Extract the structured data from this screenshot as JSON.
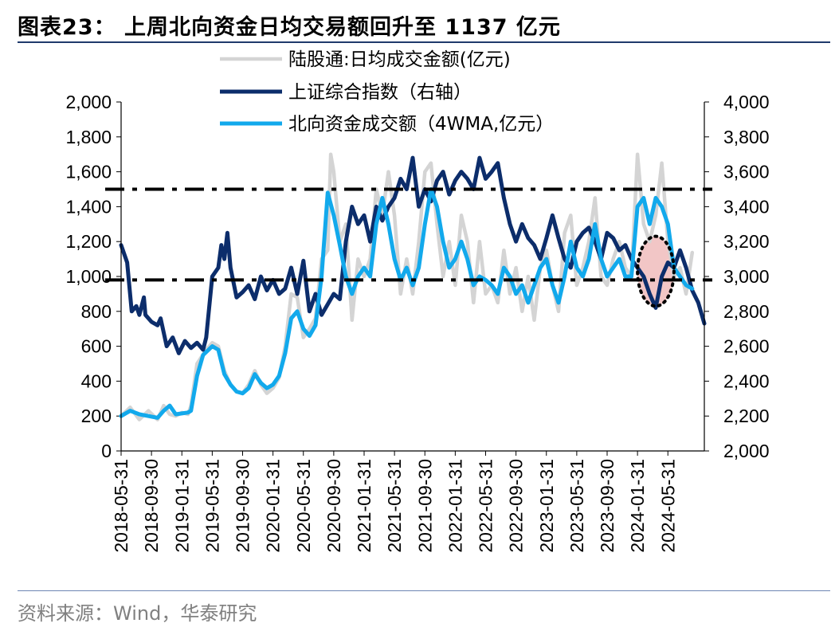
{
  "title": "图表23：  上周北向资金日均交易额回升至 1137 亿元",
  "source": "资料来源：Wind，华泰研究",
  "colors": {
    "daily": "#d4d4d4",
    "index": "#0c2d6b",
    "wma": "#12a9ec",
    "dash": "#000000",
    "circle_fill": "#f2c6c6"
  },
  "chart_data": {
    "type": "line",
    "legend": [
      "陆股通:日均成交金额(亿元)",
      "上证综合指数（右轴）",
      "北向资金成交额（4WMA,亿元）"
    ],
    "x_tick_labels": [
      "2018-05-31",
      "2018-09-30",
      "2019-01-31",
      "2019-05-31",
      "2019-09-30",
      "2020-01-31",
      "2020-05-31",
      "2020-09-30",
      "2021-01-31",
      "2021-05-31",
      "2021-09-30",
      "2022-01-31",
      "2022-05-31",
      "2022-09-30",
      "2023-01-31",
      "2023-05-31",
      "2023-09-30",
      "2024-01-31",
      "2024-05-31"
    ],
    "x_range": [
      0,
      19.2
    ],
    "y_left": {
      "range": [
        0,
        2000
      ],
      "ticks": [
        "0",
        "200",
        "400",
        "600",
        "800",
        "1,000",
        "1,200",
        "1,400",
        "1,600",
        "1,800",
        "2,000"
      ]
    },
    "y_right": {
      "range": [
        2000,
        4000
      ],
      "ticks": [
        "2,000",
        "2,200",
        "2,400",
        "2,600",
        "2,800",
        "3,000",
        "3,200",
        "3,400",
        "3,600",
        "3,800",
        "4,000"
      ]
    },
    "reference_lines": [
      {
        "axis": "left",
        "value": 980,
        "style": "dash-dot"
      },
      {
        "axis": "left",
        "value": 1500,
        "style": "dash-dot"
      }
    ],
    "highlight": {
      "x_center": 17.6,
      "y_center": 1030,
      "x_radius": 0.6,
      "y_radius": 200
    },
    "series": [
      {
        "name": "陆股通:日均成交金额(亿元)",
        "axis": "left",
        "points": [
          [
            0,
            200
          ],
          [
            0.3,
            250
          ],
          [
            0.6,
            180
          ],
          [
            0.9,
            230
          ],
          [
            1.2,
            180
          ],
          [
            1.4,
            260
          ],
          [
            1.6,
            210
          ],
          [
            1.8,
            200
          ],
          [
            2.0,
            220
          ],
          [
            2.2,
            210
          ],
          [
            2.3,
            260
          ],
          [
            2.5,
            500
          ],
          [
            2.8,
            580
          ],
          [
            3.0,
            620
          ],
          [
            3.2,
            600
          ],
          [
            3.4,
            460
          ],
          [
            3.6,
            380
          ],
          [
            3.8,
            340
          ],
          [
            4.0,
            330
          ],
          [
            4.2,
            380
          ],
          [
            4.4,
            460
          ],
          [
            4.6,
            380
          ],
          [
            4.8,
            330
          ],
          [
            5.0,
            360
          ],
          [
            5.2,
            420
          ],
          [
            5.4,
            600
          ],
          [
            5.6,
            900
          ],
          [
            5.8,
            880
          ],
          [
            6.0,
            650
          ],
          [
            6.2,
            700
          ],
          [
            6.4,
            760
          ],
          [
            6.6,
            1100
          ],
          [
            6.8,
            1150
          ],
          [
            6.9,
            1700
          ],
          [
            7.0,
            1600
          ],
          [
            7.2,
            1200
          ],
          [
            7.4,
            1300
          ],
          [
            7.6,
            750
          ],
          [
            7.8,
            1100
          ],
          [
            8.0,
            1000
          ],
          [
            8.2,
            1100
          ],
          [
            8.4,
            1500
          ],
          [
            8.6,
            1350
          ],
          [
            8.8,
            1600
          ],
          [
            9.0,
            1350
          ],
          [
            9.2,
            900
          ],
          [
            9.4,
            1100
          ],
          [
            9.6,
            900
          ],
          [
            9.8,
            1200
          ],
          [
            10.0,
            1600
          ],
          [
            10.2,
            1650
          ],
          [
            10.4,
            1300
          ],
          [
            10.6,
            1000
          ],
          [
            10.8,
            1200
          ],
          [
            11.0,
            950
          ],
          [
            11.2,
            1350
          ],
          [
            11.4,
            1200
          ],
          [
            11.6,
            850
          ],
          [
            11.8,
            1200
          ],
          [
            12.0,
            900
          ],
          [
            12.2,
            950
          ],
          [
            12.4,
            850
          ],
          [
            12.6,
            1150
          ],
          [
            12.8,
            900
          ],
          [
            13.0,
            1050
          ],
          [
            13.2,
            800
          ],
          [
            13.4,
            1000
          ],
          [
            13.6,
            750
          ],
          [
            13.8,
            1050
          ],
          [
            14.0,
            1150
          ],
          [
            14.2,
            950
          ],
          [
            14.4,
            800
          ],
          [
            14.6,
            1250
          ],
          [
            14.8,
            1350
          ],
          [
            15.0,
            950
          ],
          [
            15.2,
            1050
          ],
          [
            15.4,
            1200
          ],
          [
            15.6,
            1450
          ],
          [
            15.8,
            1000
          ],
          [
            16.0,
            950
          ],
          [
            16.2,
            1100
          ],
          [
            16.4,
            1200
          ],
          [
            16.6,
            1050
          ],
          [
            16.8,
            1000
          ],
          [
            17.0,
            1700
          ],
          [
            17.2,
            1300
          ],
          [
            17.4,
            1200
          ],
          [
            17.6,
            1350
          ],
          [
            17.8,
            1650
          ],
          [
            18.0,
            1200
          ],
          [
            18.2,
            1000
          ],
          [
            18.4,
            1050
          ],
          [
            18.6,
            900
          ],
          [
            18.8,
            1137
          ]
        ]
      },
      {
        "name": "上证综合指数（右轴）",
        "axis": "right",
        "points": [
          [
            0,
            3180
          ],
          [
            0.2,
            3080
          ],
          [
            0.35,
            2800
          ],
          [
            0.5,
            2830
          ],
          [
            0.6,
            2780
          ],
          [
            0.75,
            2880
          ],
          [
            0.8,
            2780
          ],
          [
            1.0,
            2740
          ],
          [
            1.2,
            2720
          ],
          [
            1.3,
            2760
          ],
          [
            1.5,
            2600
          ],
          [
            1.7,
            2650
          ],
          [
            1.9,
            2560
          ],
          [
            2.1,
            2630
          ],
          [
            2.3,
            2590
          ],
          [
            2.5,
            2620
          ],
          [
            2.7,
            2580
          ],
          [
            2.8,
            2650
          ],
          [
            3.0,
            3000
          ],
          [
            3.2,
            3050
          ],
          [
            3.3,
            3180
          ],
          [
            3.4,
            3100
          ],
          [
            3.5,
            3250
          ],
          [
            3.6,
            3050
          ],
          [
            3.8,
            2880
          ],
          [
            4.0,
            2910
          ],
          [
            4.2,
            2950
          ],
          [
            4.4,
            2870
          ],
          [
            4.6,
            3000
          ],
          [
            4.8,
            2920
          ],
          [
            5.0,
            2980
          ],
          [
            5.2,
            2900
          ],
          [
            5.4,
            2930
          ],
          [
            5.6,
            3050
          ],
          [
            5.8,
            2900
          ],
          [
            6.0,
            3090
          ],
          [
            6.2,
            2800
          ],
          [
            6.4,
            2900
          ],
          [
            6.6,
            2780
          ],
          [
            6.8,
            2840
          ],
          [
            7.0,
            2900
          ],
          [
            7.2,
            2870
          ],
          [
            7.4,
            3200
          ],
          [
            7.6,
            3400
          ],
          [
            7.8,
            3300
          ],
          [
            8.0,
            3350
          ],
          [
            8.2,
            3200
          ],
          [
            8.4,
            3400
          ],
          [
            8.6,
            3320
          ],
          [
            8.8,
            3400
          ],
          [
            9.0,
            3450
          ],
          [
            9.2,
            3560
          ],
          [
            9.4,
            3500
          ],
          [
            9.6,
            3680
          ],
          [
            9.8,
            3400
          ],
          [
            10.0,
            3500
          ],
          [
            10.2,
            3430
          ],
          [
            10.4,
            3550
          ],
          [
            10.6,
            3600
          ],
          [
            10.8,
            3470
          ],
          [
            11.0,
            3550
          ],
          [
            11.2,
            3600
          ],
          [
            11.4,
            3560
          ],
          [
            11.6,
            3500
          ],
          [
            11.8,
            3680
          ],
          [
            12.0,
            3560
          ],
          [
            12.2,
            3600
          ],
          [
            12.4,
            3650
          ],
          [
            12.6,
            3450
          ],
          [
            12.8,
            3300
          ],
          [
            13.0,
            3200
          ],
          [
            13.2,
            3300
          ],
          [
            13.4,
            3220
          ],
          [
            13.6,
            3180
          ],
          [
            13.8,
            3100
          ],
          [
            14.0,
            3220
          ],
          [
            14.2,
            3350
          ],
          [
            14.4,
            3220
          ],
          [
            14.6,
            3100
          ],
          [
            14.8,
            3050
          ],
          [
            15.0,
            3200
          ],
          [
            15.2,
            3250
          ],
          [
            15.4,
            3280
          ],
          [
            15.6,
            3200
          ],
          [
            15.8,
            3100
          ],
          [
            16.0,
            3250
          ],
          [
            16.2,
            3220
          ],
          [
            16.4,
            3150
          ],
          [
            16.6,
            3180
          ],
          [
            16.8,
            3100
          ],
          [
            17.0,
            3050
          ],
          [
            17.2,
            3000
          ],
          [
            17.4,
            2900
          ],
          [
            17.6,
            2820
          ],
          [
            17.8,
            3000
          ],
          [
            18.0,
            3080
          ],
          [
            18.2,
            3050
          ],
          [
            18.4,
            3150
          ],
          [
            18.6,
            3050
          ],
          [
            18.8,
            2920
          ],
          [
            19.0,
            2850
          ],
          [
            19.2,
            2730
          ]
        ]
      },
      {
        "name": "北向资金成交额（4WMA,亿元）",
        "axis": "left",
        "points": [
          [
            0,
            200
          ],
          [
            0.3,
            230
          ],
          [
            0.6,
            210
          ],
          [
            0.9,
            200
          ],
          [
            1.2,
            190
          ],
          [
            1.4,
            230
          ],
          [
            1.6,
            260
          ],
          [
            1.8,
            210
          ],
          [
            2.0,
            215
          ],
          [
            2.2,
            220
          ],
          [
            2.3,
            230
          ],
          [
            2.5,
            430
          ],
          [
            2.7,
            550
          ],
          [
            3.0,
            600
          ],
          [
            3.2,
            580
          ],
          [
            3.4,
            440
          ],
          [
            3.6,
            380
          ],
          [
            3.8,
            340
          ],
          [
            4.0,
            330
          ],
          [
            4.2,
            360
          ],
          [
            4.4,
            440
          ],
          [
            4.6,
            390
          ],
          [
            4.8,
            360
          ],
          [
            5.0,
            380
          ],
          [
            5.2,
            430
          ],
          [
            5.4,
            560
          ],
          [
            5.6,
            760
          ],
          [
            5.8,
            800
          ],
          [
            6.0,
            700
          ],
          [
            6.2,
            660
          ],
          [
            6.4,
            720
          ],
          [
            6.6,
            1000
          ],
          [
            6.8,
            1480
          ],
          [
            7.0,
            1350
          ],
          [
            7.2,
            1180
          ],
          [
            7.4,
            1000
          ],
          [
            7.6,
            900
          ],
          [
            7.8,
            1000
          ],
          [
            8.0,
            1050
          ],
          [
            8.2,
            1000
          ],
          [
            8.4,
            1300
          ],
          [
            8.6,
            1450
          ],
          [
            8.8,
            1300
          ],
          [
            9.0,
            1100
          ],
          [
            9.2,
            980
          ],
          [
            9.4,
            1050
          ],
          [
            9.6,
            950
          ],
          [
            9.8,
            1050
          ],
          [
            10.0,
            1300
          ],
          [
            10.2,
            1500
          ],
          [
            10.4,
            1400
          ],
          [
            10.6,
            1200
          ],
          [
            10.8,
            1050
          ],
          [
            11.0,
            1100
          ],
          [
            11.2,
            1200
          ],
          [
            11.4,
            1100
          ],
          [
            11.6,
            950
          ],
          [
            11.8,
            1000
          ],
          [
            12.0,
            980
          ],
          [
            12.2,
            950
          ],
          [
            12.4,
            900
          ],
          [
            12.6,
            1050
          ],
          [
            12.8,
            1000
          ],
          [
            13.0,
            900
          ],
          [
            13.2,
            950
          ],
          [
            13.4,
            850
          ],
          [
            13.6,
            950
          ],
          [
            13.8,
            1050
          ],
          [
            14.0,
            1100
          ],
          [
            14.2,
            950
          ],
          [
            14.4,
            850
          ],
          [
            14.6,
            1000
          ],
          [
            14.8,
            1200
          ],
          [
            15.0,
            1050
          ],
          [
            15.2,
            1000
          ],
          [
            15.4,
            1100
          ],
          [
            15.6,
            1300
          ],
          [
            15.8,
            1100
          ],
          [
            16.0,
            1000
          ],
          [
            16.2,
            1050
          ],
          [
            16.4,
            1100
          ],
          [
            16.6,
            1000
          ],
          [
            16.8,
            1000
          ],
          [
            17.0,
            1400
          ],
          [
            17.2,
            1450
          ],
          [
            17.4,
            1300
          ],
          [
            17.6,
            1450
          ],
          [
            17.8,
            1400
          ],
          [
            18.0,
            1300
          ],
          [
            18.2,
            1050
          ],
          [
            18.4,
            1000
          ],
          [
            18.6,
            950
          ],
          [
            18.8,
            930
          ]
        ]
      }
    ]
  }
}
